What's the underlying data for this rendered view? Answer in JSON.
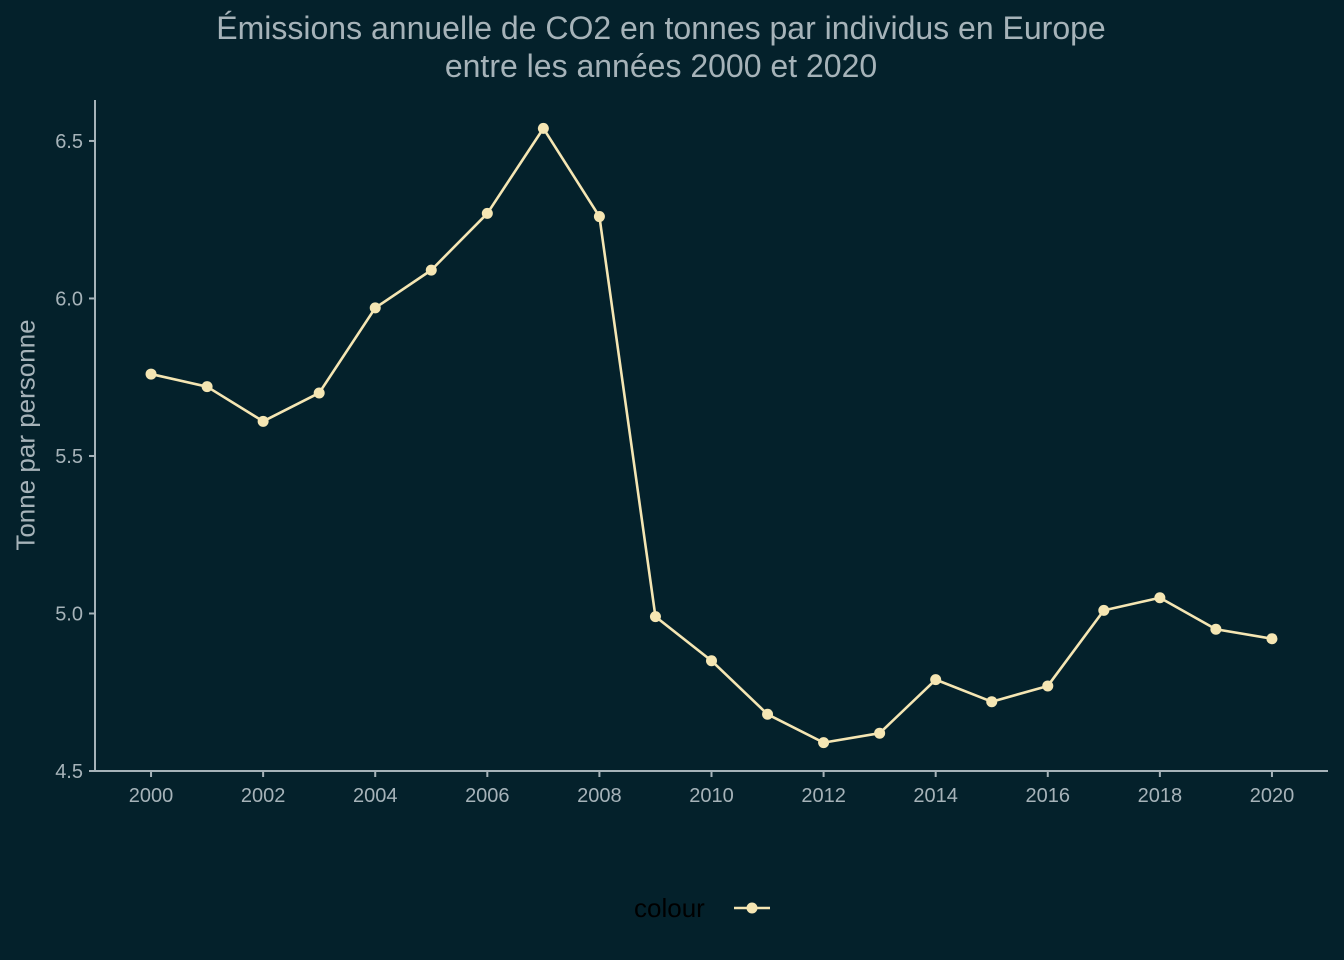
{
  "chart_data": {
    "type": "line",
    "title": "Émissions annuelle de CO2 en tonnes par individus en Europe",
    "subtitle": "entre les années 2000 et 2020",
    "xlabel": "",
    "ylabel": "Tonne par personne",
    "x": [
      2000,
      2001,
      2002,
      2003,
      2004,
      2005,
      2006,
      2007,
      2008,
      2009,
      2010,
      2011,
      2012,
      2013,
      2014,
      2015,
      2016,
      2017,
      2018,
      2019,
      2020
    ],
    "series": [
      {
        "values": [
          5.76,
          5.72,
          5.61,
          5.7,
          5.97,
          6.09,
          6.27,
          6.54,
          6.26,
          4.99,
          4.85,
          4.68,
          4.59,
          4.62,
          4.79,
          4.72,
          4.77,
          5.01,
          5.05,
          4.95,
          4.92
        ]
      }
    ],
    "xlim": [
      1999,
      2021
    ],
    "ylim": [
      4.5,
      6.63
    ],
    "x_ticks": [
      "2000",
      "2002",
      "2004",
      "2006",
      "2008",
      "2010",
      "2012",
      "2014",
      "2016",
      "2018",
      "2020"
    ],
    "y_ticks": [
      "4.5",
      "5.0",
      "5.5",
      "6.0",
      "6.5"
    ],
    "grid": false,
    "legend": {
      "title": "colour",
      "position": "bottom"
    },
    "colors": {
      "background": "#04212b",
      "line": "#f5e6b3",
      "text": "#a6b3b9",
      "axis": "#a6b3b9",
      "legend_text": "#000000"
    }
  }
}
